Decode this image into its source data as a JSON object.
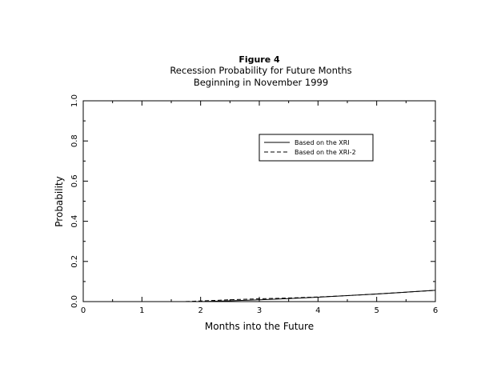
{
  "chart_data": {
    "type": "line",
    "title": "Figure 4",
    "subtitle_lines": [
      "Recession Probability for Future Months",
      "Beginning in November 1999"
    ],
    "xlabel": "Months into the Future",
    "ylabel": "Probability",
    "xlim": [
      0,
      6
    ],
    "ylim": [
      0.0,
      1.0
    ],
    "x_ticks": [
      0,
      1,
      2,
      3,
      4,
      5,
      6
    ],
    "x_tick_labels": [
      "0",
      "1",
      "2",
      "3",
      "4",
      "5",
      "6"
    ],
    "y_ticks": [
      0.0,
      0.2,
      0.4,
      0.6,
      0.8,
      1.0
    ],
    "y_tick_labels": [
      "0.0",
      "0.2",
      "0.4",
      "0.6",
      "0.8",
      "1.0"
    ],
    "grid": false,
    "legend_position": "upper-right",
    "series": [
      {
        "name": "Based on the XRI",
        "line_style": "solid",
        "x": [
          0,
          1,
          2,
          2.5,
          3,
          3.5,
          4,
          4.5,
          5,
          5.5,
          6
        ],
        "y": [
          0.0,
          0.0,
          0.0,
          0.004,
          0.009,
          0.015,
          0.022,
          0.03,
          0.038,
          0.047,
          0.056
        ]
      },
      {
        "name": "Based on the XRI-2",
        "line_style": "dashed",
        "x": [
          0,
          1,
          1.7,
          2,
          2.5,
          3,
          3.5,
          4,
          4.5,
          5,
          5.5,
          6
        ],
        "y": [
          0.0,
          0.0,
          0.0,
          0.003,
          0.009,
          0.014,
          0.018,
          0.023,
          0.03,
          0.038,
          0.047,
          0.056
        ]
      }
    ]
  }
}
